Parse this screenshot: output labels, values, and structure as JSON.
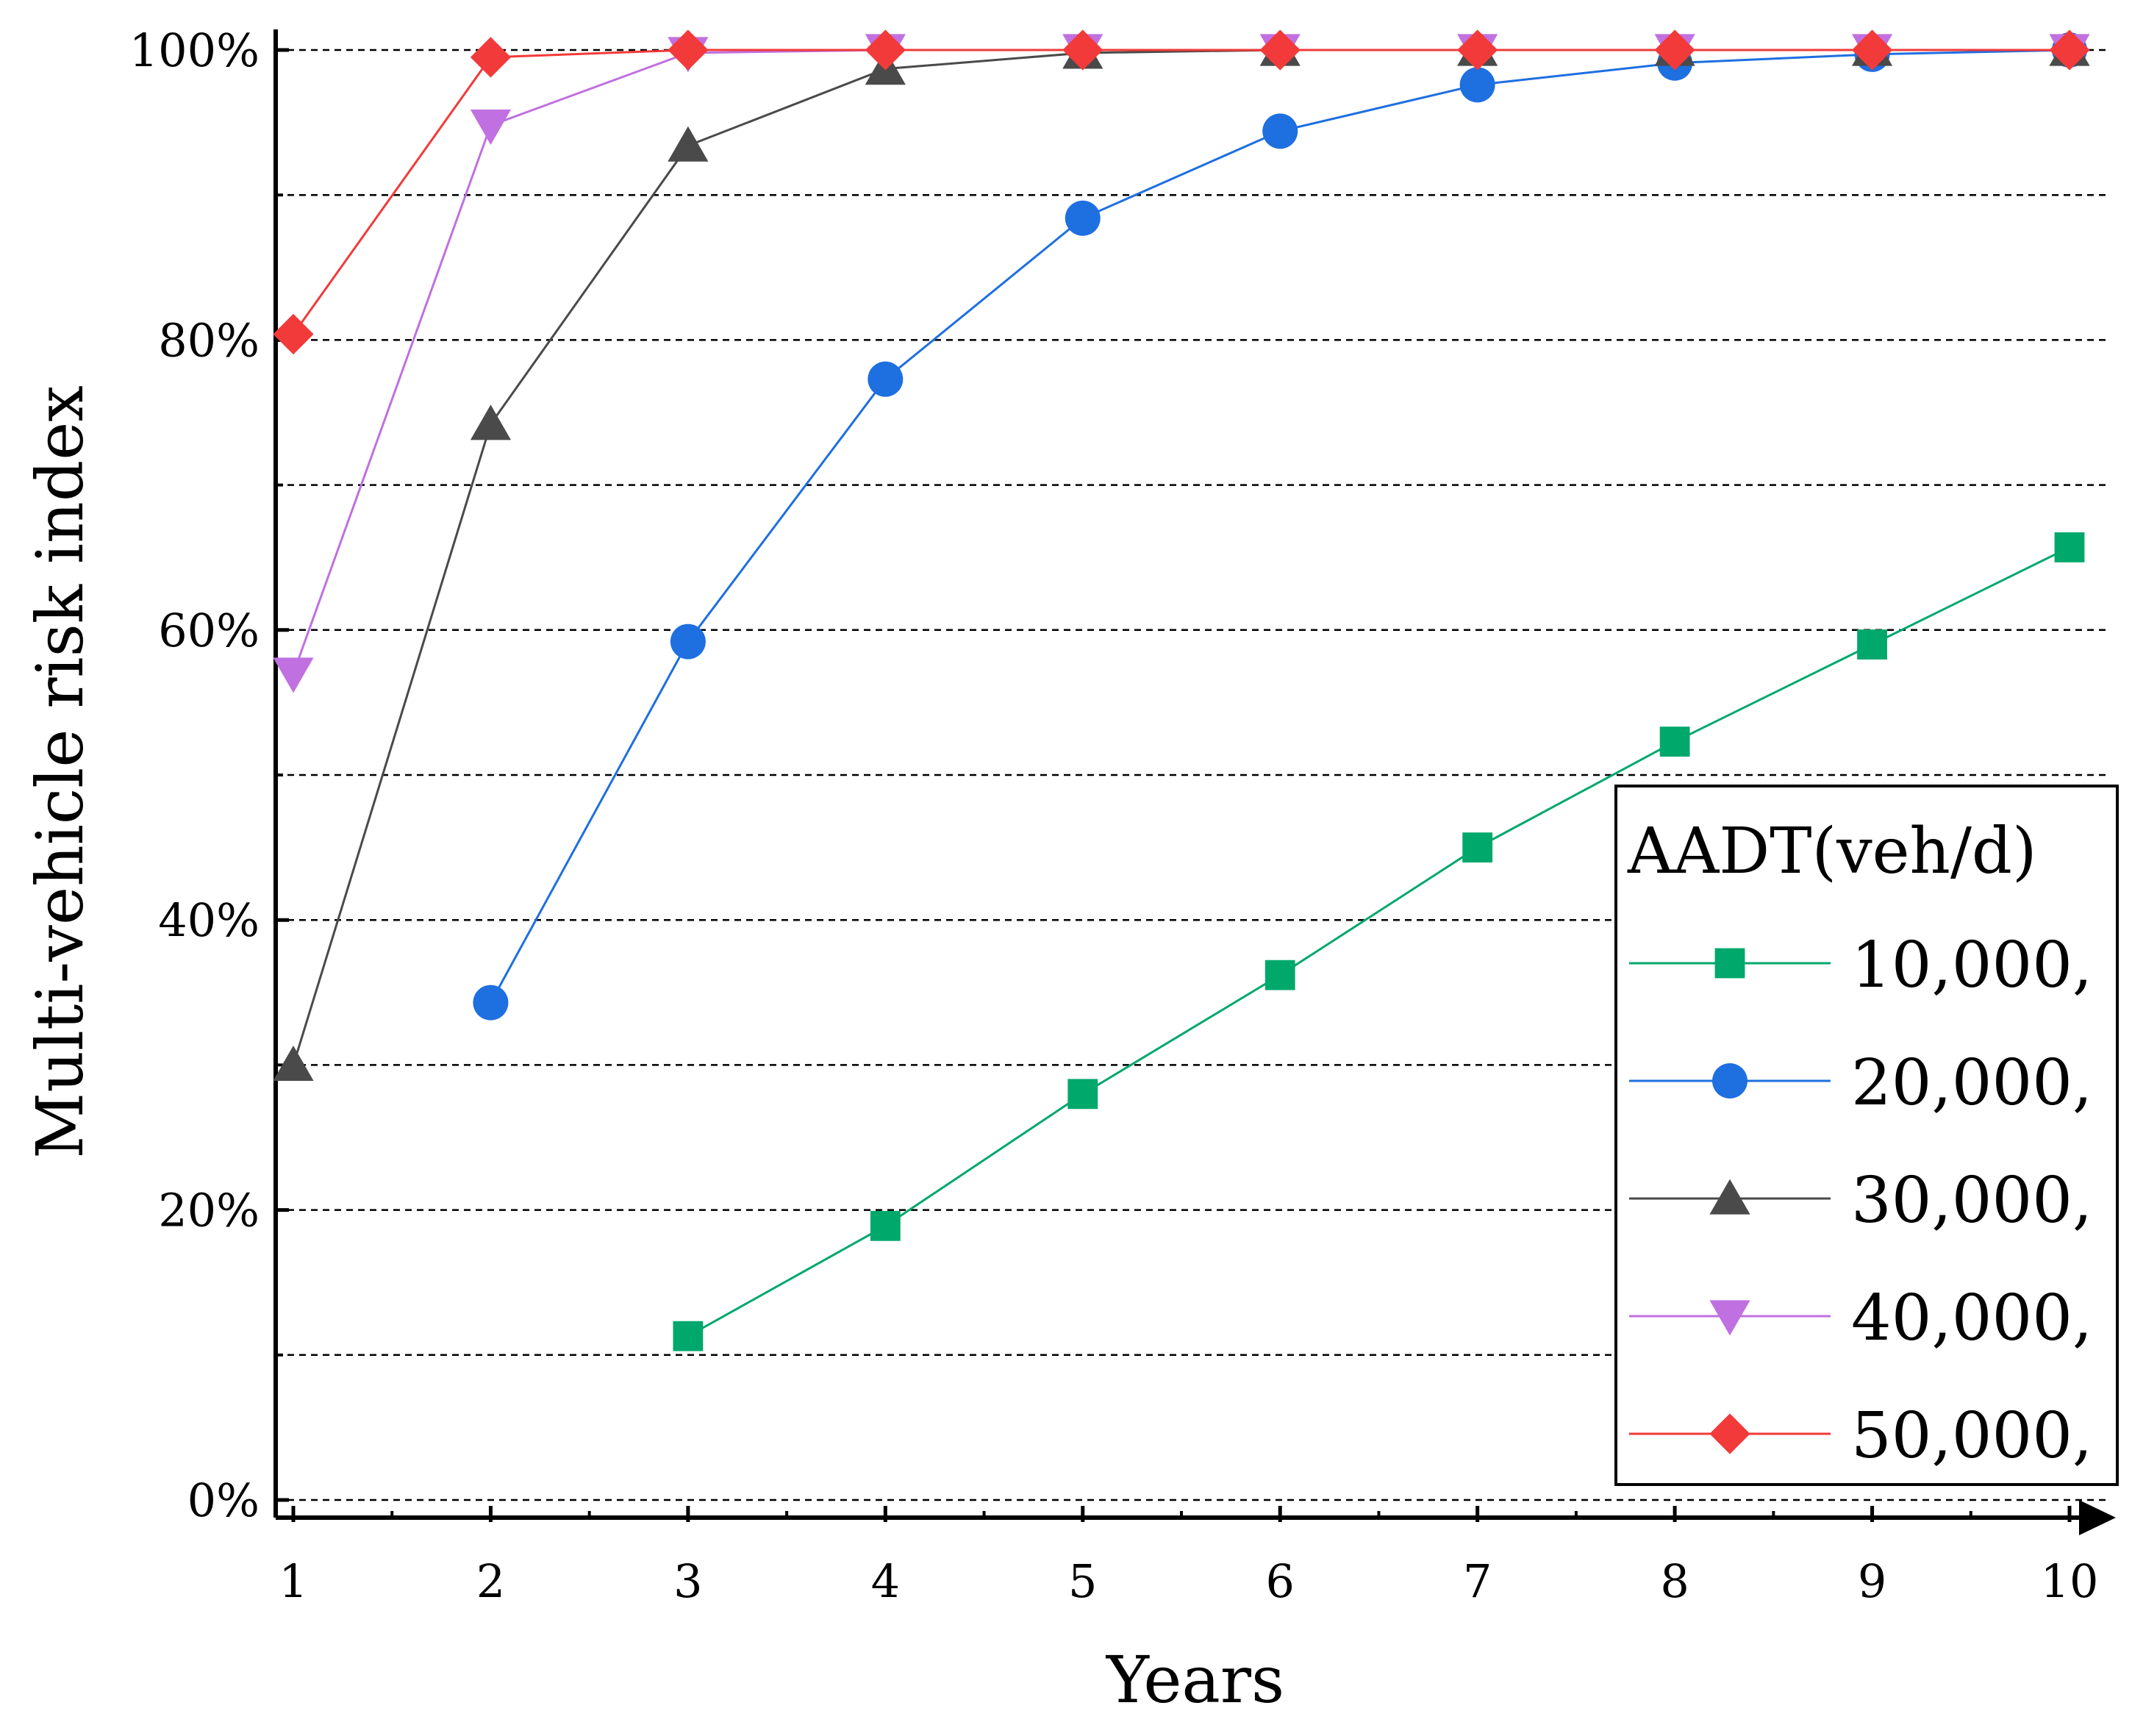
{
  "chart_data": {
    "type": "line",
    "title": "",
    "xlabel": "Years",
    "ylabel": "Multi-vehicle risk index",
    "x": [
      1,
      2,
      3,
      4,
      5,
      6,
      7,
      8,
      9,
      10
    ],
    "x_tick_labels": [
      "1",
      "2",
      "3",
      "4",
      "5",
      "6",
      "7",
      "8",
      "9",
      "10"
    ],
    "xlim": [
      1,
      10
    ],
    "ylim": [
      0,
      100
    ],
    "y_ticks": [
      0,
      20,
      40,
      60,
      80,
      100
    ],
    "y_tick_labels": [
      "0%",
      "20%",
      "40%",
      "60%",
      "80%",
      "100%"
    ],
    "y_minor_ticks": [
      10,
      30,
      50,
      70,
      90
    ],
    "grid": "horizontal dashed",
    "legend": {
      "title": "AADT(veh/d)",
      "placement": "right"
    },
    "series": [
      {
        "name": "10,000,",
        "color": "#00a86b",
        "marker": "square",
        "x": [
          3,
          4,
          5,
          6,
          7,
          8,
          9,
          10
        ],
        "values": [
          11.3,
          18.9,
          28.0,
          36.2,
          45.0,
          52.3,
          59.0,
          65.7
        ]
      },
      {
        "name": "20,000,",
        "color": "#1e6fe0",
        "marker": "circle",
        "x": [
          2,
          3,
          4,
          5,
          6,
          7,
          8,
          9,
          10
        ],
        "values": [
          34.3,
          59.2,
          77.3,
          88.4,
          94.4,
          97.6,
          99.1,
          99.7,
          100.0
        ]
      },
      {
        "name": "30,000,",
        "color": "#4a4a4a",
        "marker": "triangle-up",
        "x": [
          1,
          2,
          3,
          4,
          5,
          6,
          7,
          8,
          9,
          10
        ],
        "values": [
          30.0,
          74.2,
          93.4,
          98.7,
          99.8,
          100.0,
          100.0,
          100.0,
          100.0,
          100.0
        ]
      },
      {
        "name": "40,000,",
        "color": "#c070e0",
        "marker": "triangle-down",
        "x": [
          1,
          2,
          3,
          4,
          5,
          6,
          7,
          8,
          9,
          10
        ],
        "values": [
          57.0,
          94.8,
          99.8,
          100.0,
          100.0,
          100.0,
          100.0,
          100.0,
          100.0,
          100.0
        ]
      },
      {
        "name": "50,000,",
        "color": "#f23a3a",
        "marker": "diamond",
        "x": [
          1,
          2,
          3,
          4,
          5,
          6,
          7,
          8,
          9,
          10
        ],
        "values": [
          80.4,
          99.5,
          100.0,
          100.0,
          100.0,
          100.0,
          100.0,
          100.0,
          100.0,
          100.0
        ]
      }
    ]
  }
}
